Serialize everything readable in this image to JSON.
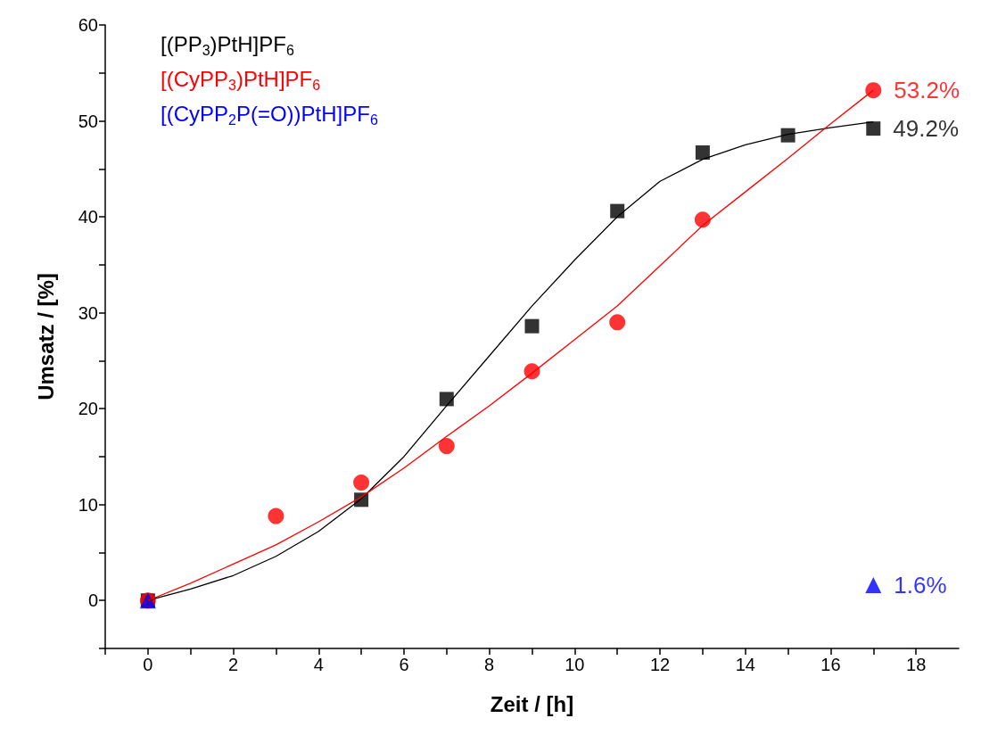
{
  "chart_data": {
    "type": "scatter",
    "xlabel": "Zeit / [h]",
    "ylabel": "Umsatz / [%]",
    "xlim": [
      -1,
      19
    ],
    "ylim": [
      -5,
      60
    ],
    "xticks": [
      {
        "value": -1,
        "label": null
      },
      0,
      {
        "value": 1,
        "label": null
      },
      2,
      {
        "value": 3,
        "label": null
      },
      4,
      {
        "value": 5,
        "label": null
      },
      6,
      {
        "value": 7,
        "label": null
      },
      8,
      {
        "value": 9,
        "label": null
      },
      10,
      {
        "value": 11,
        "label": null
      },
      12,
      {
        "value": 13,
        "label": null
      },
      14,
      {
        "value": 15,
        "label": null
      },
      16,
      {
        "value": 17,
        "label": null
      },
      18
    ],
    "yticks": [
      {
        "value": -5,
        "label": null
      },
      0,
      {
        "value": 5,
        "label": null
      },
      10,
      {
        "value": 15,
        "label": null
      },
      20,
      {
        "value": 25,
        "label": null
      },
      30,
      {
        "value": 35,
        "label": null
      },
      40,
      {
        "value": 45,
        "label": null
      },
      50,
      {
        "value": 55,
        "label": null
      },
      60
    ],
    "grid": false,
    "legend": "top left",
    "line_style": "solid",
    "series": [
      {
        "name": "[(PP$_{3}$)PtH]PF$_{6}$",
        "color": "#000000",
        "marker": "square",
        "x": [
          0,
          5,
          7,
          9,
          11,
          13,
          15,
          17
        ],
        "values": [
          0,
          10.5,
          21,
          28.6,
          40.6,
          46.7,
          48.5,
          49.2
        ],
        "value_labels": [
          null,
          null,
          null,
          null,
          null,
          null,
          null,
          "49.2%"
        ]
      },
      {
        "name": "[(CyPP$_{3}$)PtH]PF$_{6}$",
        "color": "#ff0000",
        "marker": "circle",
        "x": [
          0,
          3,
          5,
          7,
          9,
          11,
          13,
          17
        ],
        "values": [
          0,
          8.8,
          12.3,
          16.1,
          23.9,
          29,
          39.7,
          53.2
        ],
        "value_labels": [
          null,
          null,
          null,
          null,
          null,
          null,
          null,
          "53.2%"
        ]
      },
      {
        "name": "[(CyPP$_{2}$P(=O))PtH]PF$_{6}$",
        "color": "#0000ff",
        "marker": "triangle",
        "x": [
          0,
          17
        ],
        "values": [
          0,
          1.6
        ],
        "value_labels": [
          null,
          "1.6%"
        ]
      },
      {
        "type": "line",
        "color": "#000000",
        "marker": "none",
        "x": [
          0,
          1,
          2,
          3,
          4,
          5,
          6,
          7,
          8,
          9,
          10,
          11,
          12,
          13,
          14,
          15,
          16,
          17
        ],
        "values": [
          0,
          1.2,
          2.6,
          4.6,
          7.2,
          10.6,
          15,
          20.3,
          25.5,
          30.7,
          35.5,
          40,
          43.7,
          46,
          47.5,
          48.6,
          49.3,
          49.9
        ]
      },
      {
        "type": "line",
        "color": "#ff0000",
        "marker": "none",
        "x": [
          0,
          1,
          2,
          3,
          4,
          5,
          6,
          7,
          8,
          9,
          10,
          11,
          12,
          13,
          14,
          15,
          16,
          17
        ],
        "values": [
          0,
          1.8,
          3.8,
          5.8,
          8.2,
          10.8,
          13.8,
          17.1,
          20.3,
          23.7,
          27.2,
          30.7,
          34.9,
          39.1,
          42.6,
          46.1,
          49.7,
          53.2
        ]
      }
    ]
  }
}
